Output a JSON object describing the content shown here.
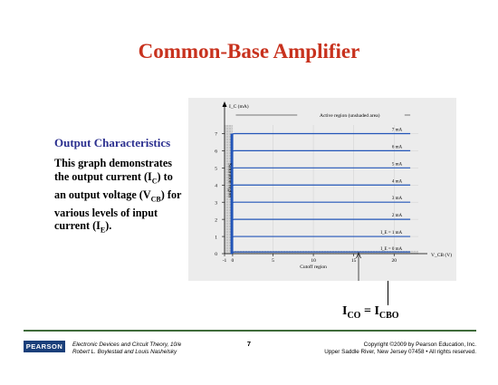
{
  "slide": {
    "title": "Common-Base Amplifier",
    "subtitle": "Output Characteristics",
    "description": {
      "l1": "This graph demonstrates",
      "l2a": "the output current (I",
      "l2sub": "C",
      "l2b": ") to",
      "l3a": "an output voltage (V",
      "l3sub": "CB",
      "l3b": ") for",
      "l4": "various levels of input",
      "l5a": "current (I",
      "l5sub": "E",
      "l5b": ")."
    },
    "ico_equation": {
      "lhs": "I",
      "lhs_sub": "CO",
      "eq": " = ",
      "rhs": "I",
      "rhs_sub": "CBO"
    }
  },
  "chart_data": {
    "type": "line",
    "title": "",
    "y_axis_label": "I_C (mA)",
    "x_axis_label": "V_CB (V)",
    "y_ticks": [
      "0",
      "1",
      "2",
      "3",
      "4",
      "5",
      "6",
      "7"
    ],
    "x_ticks": [
      "-1",
      "0",
      "5",
      "10",
      "15",
      "20"
    ],
    "xlim": [
      -1,
      23
    ],
    "ylim": [
      0,
      7.5
    ],
    "grid": true,
    "series": [
      {
        "label": "7 mA",
        "ic": 7
      },
      {
        "label": "6 mA",
        "ic": 6
      },
      {
        "label": "5 mA",
        "ic": 5
      },
      {
        "label": "4 mA",
        "ic": 4
      },
      {
        "label": "3 mA",
        "ic": 3
      },
      {
        "label": "2 mA",
        "ic": 2
      },
      {
        "label": "I_E = 1 mA",
        "ic": 1
      },
      {
        "label": "I_E = 0 mA",
        "ic": 0.1
      }
    ],
    "annotations": {
      "active_region": "Active region (unshaded area)",
      "saturation_region": "Saturation region",
      "cutoff_region": "Cutoff region"
    }
  },
  "footer": {
    "logo": "PEARSON",
    "book_line1": "Electronic Devices and Circuit Theory, 10/e",
    "book_line2": "Robert L. Boylestad and Louis Nashelsky",
    "page": "7",
    "copyright_line1": "Copyright ©2009 by Pearson Education, Inc.",
    "copyright_line2": "Upper Saddle River, New Jersey 07458 • All rights reserved."
  },
  "colors": {
    "title": "#c8321e",
    "subtitle": "#2b2f8f",
    "curve": "#2255b8",
    "footer_rule": "#3f6b3a"
  }
}
